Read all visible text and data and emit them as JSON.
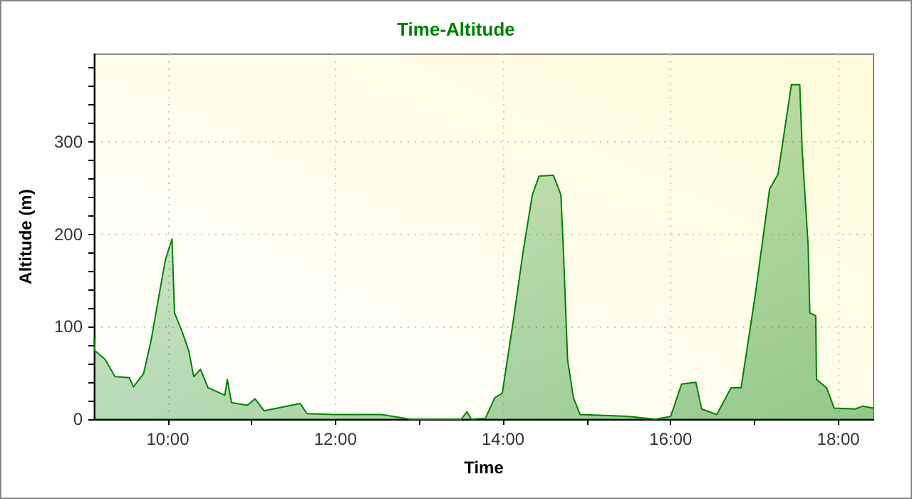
{
  "chart_data": {
    "type": "area",
    "title": "Time-Altitude",
    "xlabel": "Time",
    "ylabel": "Altitude (m)",
    "x": [
      9.12,
      9.13,
      9.25,
      9.37,
      9.54,
      9.59,
      9.71,
      9.8,
      9.88,
      9.97,
      10.05,
      10.08,
      10.17,
      10.25,
      10.31,
      10.39,
      10.48,
      10.68,
      10.71,
      10.76,
      10.95,
      11.04,
      11.15,
      11.58,
      11.66,
      11.97,
      12.55,
      12.89,
      13.5,
      13.57,
      13.62,
      13.79,
      13.9,
      13.99,
      14.12,
      14.24,
      14.35,
      14.43,
      14.6,
      14.69,
      14.72,
      14.77,
      14.84,
      14.92,
      15.48,
      15.82,
      16.0,
      16.13,
      16.3,
      16.37,
      16.55,
      16.72,
      16.84,
      17.01,
      17.18,
      17.28,
      17.44,
      17.54,
      17.57,
      17.64,
      17.66,
      17.73,
      17.74,
      17.86,
      17.95,
      18.2,
      18.29,
      18.42
    ],
    "series": [
      {
        "color": "#008000",
        "values": [
          88,
          74,
          65,
          46,
          45,
          35,
          49,
          85,
          126,
          172,
          195,
          115,
          95,
          74,
          46,
          54,
          34,
          26,
          43,
          18,
          15,
          22,
          9,
          17,
          6,
          5,
          5,
          0,
          0,
          8,
          0,
          1,
          23,
          28,
          105,
          182,
          243,
          263,
          264,
          243,
          182,
          64,
          23,
          5,
          3,
          0,
          3,
          38,
          40,
          11,
          5,
          34,
          34,
          135,
          249,
          265,
          362,
          362,
          289,
          188,
          115,
          112,
          43,
          34,
          12,
          11,
          14,
          12
        ]
      }
    ],
    "xlim": [
      9.12,
      18.42
    ],
    "xticks": [
      {
        "value": 10,
        "label": "10:00"
      },
      {
        "value": 11,
        "label": null
      },
      {
        "value": 12,
        "label": "12:00"
      },
      {
        "value": 13,
        "label": null
      },
      {
        "value": 14,
        "label": "14:00"
      },
      {
        "value": 15,
        "label": null
      },
      {
        "value": 16,
        "label": "16:00"
      },
      {
        "value": 17,
        "label": null
      },
      {
        "value": 18,
        "label": "18:00"
      }
    ],
    "ylim": [
      0,
      395
    ],
    "yticks": [
      0,
      {
        "value": 20,
        "label": null
      },
      {
        "value": 40,
        "label": null
      },
      {
        "value": 60,
        "label": null
      },
      {
        "value": 80,
        "label": null
      },
      100,
      {
        "value": 120,
        "label": null
      },
      {
        "value": 140,
        "label": null
      },
      {
        "value": 160,
        "label": null
      },
      {
        "value": 180,
        "label": null
      },
      200,
      {
        "value": 220,
        "label": null
      },
      {
        "value": 240,
        "label": null
      },
      {
        "value": 260,
        "label": null
      },
      {
        "value": 280,
        "label": null
      },
      300,
      {
        "value": 320,
        "label": null
      },
      {
        "value": 340,
        "label": null
      },
      {
        "value": 360,
        "label": null
      },
      {
        "value": 380,
        "label": null
      }
    ],
    "grid": true,
    "marker": "none",
    "line_style": "solid"
  }
}
